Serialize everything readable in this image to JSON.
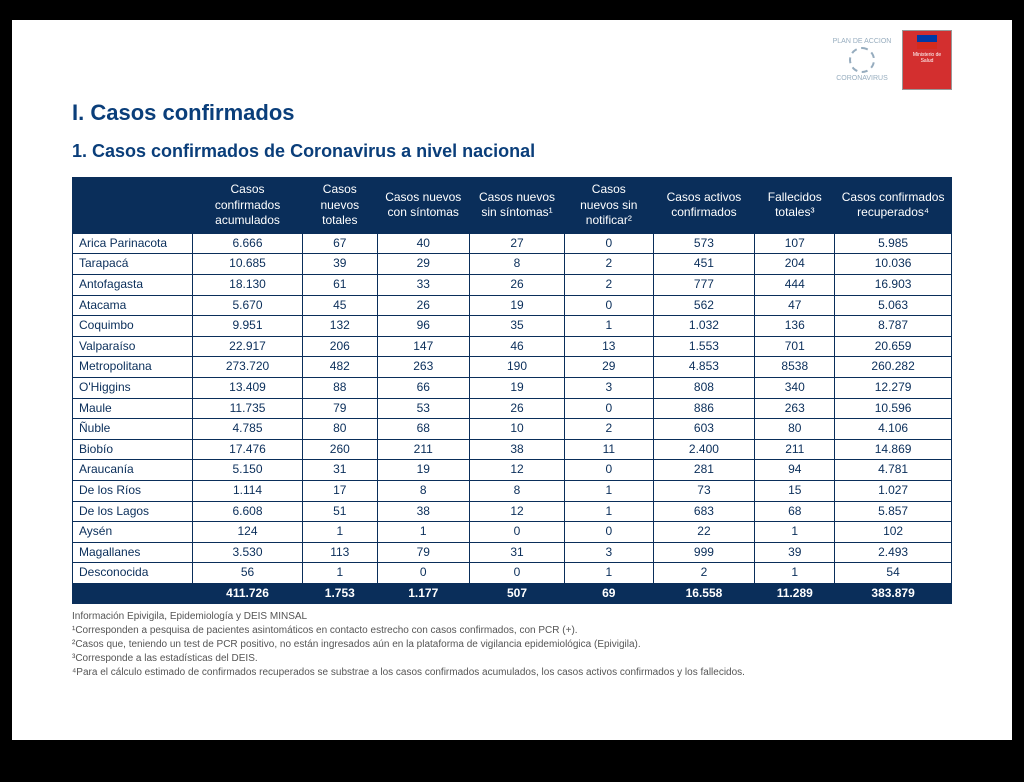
{
  "header": {
    "section_title": "I. Casos confirmados",
    "subsection_title": "1. Casos confirmados de Coronavirus a nivel nacional",
    "logo_corona_top": "PLAN DE ACCION",
    "logo_corona_bottom": "CORONAVIRUS",
    "logo_minsal_text": "Ministerio de Salud"
  },
  "table": {
    "columns": [
      "",
      "Casos confirmados acumulados",
      "Casos nuevos totales",
      "Casos nuevos con síntomas",
      "Casos nuevos sin síntomas¹",
      "Casos nuevos sin notificar²",
      "Casos activos confirmados",
      "Fallecidos totales³",
      "Casos confirmados recuperados⁴"
    ],
    "rows": [
      [
        "Arica Parinacota",
        "6.666",
        "67",
        "40",
        "27",
        "0",
        "573",
        "107",
        "5.985"
      ],
      [
        "Tarapacá",
        "10.685",
        "39",
        "29",
        "8",
        "2",
        "451",
        "204",
        "10.036"
      ],
      [
        "Antofagasta",
        "18.130",
        "61",
        "33",
        "26",
        "2",
        "777",
        "444",
        "16.903"
      ],
      [
        "Atacama",
        "5.670",
        "45",
        "26",
        "19",
        "0",
        "562",
        "47",
        "5.063"
      ],
      [
        "Coquimbo",
        "9.951",
        "132",
        "96",
        "35",
        "1",
        "1.032",
        "136",
        "8.787"
      ],
      [
        "Valparaíso",
        "22.917",
        "206",
        "147",
        "46",
        "13",
        "1.553",
        "701",
        "20.659"
      ],
      [
        "Metropolitana",
        "273.720",
        "482",
        "263",
        "190",
        "29",
        "4.853",
        "8538",
        "260.282"
      ],
      [
        "O'Higgins",
        "13.409",
        "88",
        "66",
        "19",
        "3",
        "808",
        "340",
        "12.279"
      ],
      [
        "Maule",
        "11.735",
        "79",
        "53",
        "26",
        "0",
        "886",
        "263",
        "10.596"
      ],
      [
        "Ñuble",
        "4.785",
        "80",
        "68",
        "10",
        "2",
        "603",
        "80",
        "4.106"
      ],
      [
        "Biobío",
        "17.476",
        "260",
        "211",
        "38",
        "11",
        "2.400",
        "211",
        "14.869"
      ],
      [
        "Araucanía",
        "5.150",
        "31",
        "19",
        "12",
        "0",
        "281",
        "94",
        "4.781"
      ],
      [
        "De los Ríos",
        "1.114",
        "17",
        "8",
        "8",
        "1",
        "73",
        "15",
        "1.027"
      ],
      [
        "De los Lagos",
        "6.608",
        "51",
        "38",
        "12",
        "1",
        "683",
        "68",
        "5.857"
      ],
      [
        "Aysén",
        "124",
        "1",
        "1",
        "0",
        "0",
        "22",
        "1",
        "102"
      ],
      [
        "Magallanes",
        "3.530",
        "113",
        "79",
        "31",
        "3",
        "999",
        "39",
        "2.493"
      ],
      [
        "Desconocida",
        "56",
        "1",
        "0",
        "0",
        "1",
        "2",
        "1",
        "54"
      ]
    ],
    "totals": [
      "",
      "411.726",
      "1.753",
      "1.177",
      "507",
      "69",
      "16.558",
      "11.289",
      "383.879"
    ]
  },
  "footnotes": {
    "line0": "Información Epivigila, Epidemiología y DEIS MINSAL",
    "line1": "¹Corresponden a pesquisa de pacientes asintomáticos en contacto estrecho con casos confirmados, con PCR (+).",
    "line2": "²Casos que, teniendo un test de PCR positivo, no están ingresados aún en la plataforma de vigilancia epidemiológica (Epivigila).",
    "line3": "³Corresponde a las estadísticas del DEIS.",
    "line4": "⁴Para el cálculo estimado de confirmados recuperados se substrae a los casos confirmados acumulados, los casos activos confirmados y los fallecidos."
  },
  "style": {
    "primary_color": "#0a2e5a",
    "title_color": "#0a3e7a",
    "background": "#ffffff",
    "footnote_color": "#555555"
  }
}
